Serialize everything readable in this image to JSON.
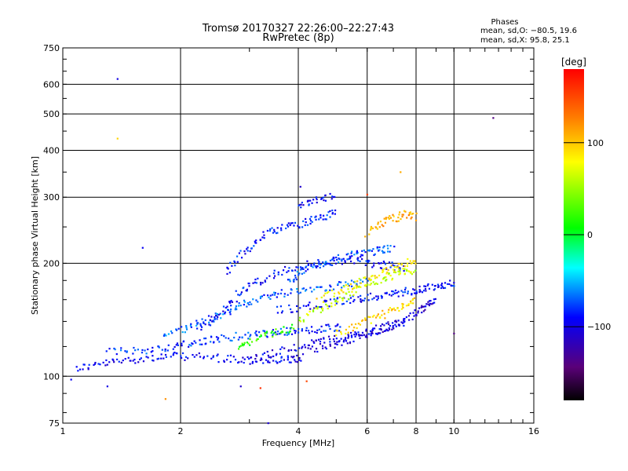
{
  "chart_data": {
    "type": "scatter",
    "title": "Tromsø 20170327 22:26:00–22:27:43",
    "subtitle": "RwPretec (8p)",
    "xlabel": "Frequency [MHz]",
    "ylabel": "Stationary phase Virtual Height [km]",
    "x_scale": "log",
    "y_scale": "log",
    "xlim": [
      1,
      16
    ],
    "ylim": [
      75,
      750
    ],
    "x_ticks": [
      1,
      2,
      4,
      6,
      8,
      10,
      16
    ],
    "x_tick_labels": [
      "1",
      "2",
      "4",
      "6",
      "8",
      "10",
      "16"
    ],
    "y_ticks": [
      75,
      100,
      200,
      300,
      400,
      500,
      600,
      750
    ],
    "y_tick_labels": [
      "75",
      "100",
      "200",
      "300",
      "400",
      "500",
      "600",
      "750"
    ],
    "grid": true,
    "legend": {
      "title": "Phases",
      "lines": [
        "mean, sd,O: −80.5, 19.6",
        "mean, sd,X: 95.8, 25.1"
      ],
      "position": "top-right"
    },
    "colorbar": {
      "label": "[deg]",
      "range": [
        -180,
        180
      ],
      "ticks": [
        100,
        0,
        -100
      ],
      "tick_labels": [
        "100",
        "0",
        "−100"
      ],
      "colormap": "rainbow (black-purple-blue-cyan-green-yellow-red)"
    },
    "traces": [
      {
        "color_value": -95,
        "points": [
          [
            1.08,
            105
          ],
          [
            1.2,
            107
          ],
          [
            1.35,
            109
          ],
          [
            1.5,
            111
          ],
          [
            1.7,
            112
          ],
          [
            1.9,
            113
          ],
          [
            2.1,
            113
          ],
          [
            2.4,
            112
          ],
          [
            2.7,
            111
          ],
          [
            3.0,
            110
          ],
          [
            3.3,
            110
          ],
          [
            3.6,
            110
          ],
          [
            3.9,
            111
          ],
          [
            4.1,
            112
          ]
        ]
      },
      {
        "color_value": -80,
        "points": [
          [
            1.3,
            116
          ],
          [
            1.5,
            117
          ],
          [
            1.7,
            118
          ],
          [
            1.9,
            120
          ],
          [
            2.1,
            122
          ],
          [
            2.3,
            124
          ],
          [
            2.5,
            126
          ],
          [
            2.8,
            128
          ],
          [
            3.1,
            129
          ],
          [
            3.4,
            130
          ],
          [
            3.7,
            131
          ],
          [
            4.0,
            132
          ],
          [
            4.4,
            133
          ],
          [
            4.8,
            134
          ],
          [
            5.2,
            135
          ]
        ]
      },
      {
        "color_value": -70,
        "points": [
          [
            1.8,
            128
          ],
          [
            2.0,
            133
          ],
          [
            2.2,
            138
          ],
          [
            2.4,
            143
          ],
          [
            2.6,
            148
          ],
          [
            2.8,
            153
          ],
          [
            3.0,
            158
          ],
          [
            3.3,
            163
          ],
          [
            3.6,
            166
          ],
          [
            4.0,
            170
          ],
          [
            4.5,
            172
          ],
          [
            5.0,
            174
          ],
          [
            5.5,
            176
          ],
          [
            6.0,
            178
          ]
        ]
      },
      {
        "color_value": -90,
        "points": [
          [
            2.2,
            135
          ],
          [
            2.4,
            140
          ],
          [
            2.6,
            150
          ],
          [
            2.8,
            165
          ],
          [
            3.0,
            175
          ],
          [
            3.3,
            182
          ],
          [
            3.6,
            190
          ],
          [
            4.0,
            196
          ],
          [
            4.5,
            200
          ],
          [
            5.0,
            202
          ],
          [
            5.5,
            205
          ],
          [
            6.0,
            200
          ],
          [
            6.5,
            198
          ],
          [
            7.0,
            196
          ],
          [
            7.5,
            195
          ]
        ]
      },
      {
        "color_value": -85,
        "points": [
          [
            2.6,
            190
          ],
          [
            2.8,
            205
          ],
          [
            3.0,
            220
          ],
          [
            3.2,
            235
          ],
          [
            3.5,
            245
          ],
          [
            3.8,
            252
          ],
          [
            4.1,
            256
          ],
          [
            4.4,
            262
          ],
          [
            4.7,
            268
          ],
          [
            5.0,
            272
          ]
        ]
      },
      {
        "color_value": -100,
        "points": [
          [
            3.0,
            112
          ],
          [
            3.4,
            115
          ],
          [
            3.8,
            118
          ],
          [
            4.2,
            121
          ],
          [
            4.6,
            124
          ],
          [
            5.0,
            126
          ],
          [
            5.5,
            128
          ],
          [
            6.0,
            131
          ],
          [
            6.5,
            134
          ],
          [
            7.0,
            137
          ],
          [
            7.5,
            140
          ]
        ]
      },
      {
        "color_value": -90,
        "points": [
          [
            3.5,
            150
          ],
          [
            4.0,
            152
          ],
          [
            4.5,
            155
          ],
          [
            5.0,
            158
          ],
          [
            5.5,
            160
          ],
          [
            6.0,
            163
          ],
          [
            6.5,
            164
          ],
          [
            7.0,
            166
          ],
          [
            7.5,
            168
          ],
          [
            8.0,
            170
          ],
          [
            8.5,
            172
          ],
          [
            9.0,
            174
          ],
          [
            9.5,
            176
          ],
          [
            10.0,
            178
          ]
        ]
      },
      {
        "color_value": -105,
        "points": [
          [
            4.3,
            118
          ],
          [
            4.8,
            121
          ],
          [
            5.3,
            124
          ],
          [
            5.8,
            128
          ],
          [
            6.3,
            132
          ],
          [
            6.8,
            136
          ],
          [
            7.3,
            140
          ],
          [
            7.8,
            145
          ],
          [
            8.2,
            150
          ],
          [
            8.6,
            155
          ],
          [
            9.0,
            158
          ]
        ]
      },
      {
        "color_value": -75,
        "points": [
          [
            3.8,
            180
          ],
          [
            4.0,
            188
          ],
          [
            4.3,
            195
          ],
          [
            4.6,
            200
          ],
          [
            5.0,
            205
          ],
          [
            5.4,
            210
          ],
          [
            5.8,
            212
          ],
          [
            6.2,
            215
          ],
          [
            6.6,
            218
          ],
          [
            7.0,
            220
          ]
        ]
      },
      {
        "color_value": 60,
        "points": [
          [
            4.0,
            140
          ],
          [
            4.4,
            148
          ],
          [
            4.8,
            155
          ],
          [
            5.2,
            162
          ],
          [
            5.6,
            170
          ],
          [
            6.0,
            176
          ],
          [
            6.5,
            180
          ],
          [
            7.0,
            185
          ],
          [
            7.5,
            190
          ],
          [
            8.0,
            192
          ]
        ]
      },
      {
        "color_value": 85,
        "points": [
          [
            4.5,
            160
          ],
          [
            5.0,
            168
          ],
          [
            5.5,
            175
          ],
          [
            6.0,
            182
          ],
          [
            6.5,
            188
          ],
          [
            7.0,
            194
          ],
          [
            7.5,
            200
          ],
          [
            8.0,
            204
          ]
        ]
      },
      {
        "color_value": 95,
        "points": [
          [
            5.0,
            130
          ],
          [
            5.5,
            135
          ],
          [
            6.0,
            140
          ],
          [
            6.5,
            145
          ],
          [
            7.0,
            150
          ],
          [
            7.5,
            155
          ],
          [
            8.0,
            160
          ]
        ]
      },
      {
        "color_value": 110,
        "points": [
          [
            6.0,
            240
          ],
          [
            6.4,
            252
          ],
          [
            6.8,
            260
          ],
          [
            7.2,
            266
          ],
          [
            7.6,
            270
          ],
          [
            8.0,
            265
          ]
        ]
      },
      {
        "color_value": 20,
        "points": [
          [
            2.8,
            120
          ],
          [
            3.0,
            124
          ],
          [
            3.3,
            128
          ],
          [
            3.6,
            132
          ],
          [
            3.9,
            135
          ]
        ]
      },
      {
        "color_value": -95,
        "points": [
          [
            4.0,
            280
          ],
          [
            4.3,
            290
          ],
          [
            4.6,
            298
          ],
          [
            5.0,
            302
          ]
        ]
      }
    ],
    "outliers": [
      {
        "x": 1.38,
        "y": 620,
        "color_value": -100
      },
      {
        "x": 1.38,
        "y": 430,
        "color_value": 95
      },
      {
        "x": 12.6,
        "y": 488,
        "color_value": -140
      },
      {
        "x": 1.6,
        "y": 220,
        "color_value": -95
      },
      {
        "x": 1.05,
        "y": 98,
        "color_value": -95
      },
      {
        "x": 1.3,
        "y": 94,
        "color_value": -100
      },
      {
        "x": 1.83,
        "y": 87,
        "color_value": 120
      },
      {
        "x": 2.85,
        "y": 94,
        "color_value": -110
      },
      {
        "x": 3.2,
        "y": 93,
        "color_value": 160
      },
      {
        "x": 3.35,
        "y": 75,
        "color_value": -105
      },
      {
        "x": 4.2,
        "y": 97,
        "color_value": 150
      },
      {
        "x": 10.0,
        "y": 130,
        "color_value": -140
      },
      {
        "x": 7.3,
        "y": 350,
        "color_value": 110
      },
      {
        "x": 6.0,
        "y": 305,
        "color_value": 155
      },
      {
        "x": 4.05,
        "y": 320,
        "color_value": -110
      }
    ]
  }
}
